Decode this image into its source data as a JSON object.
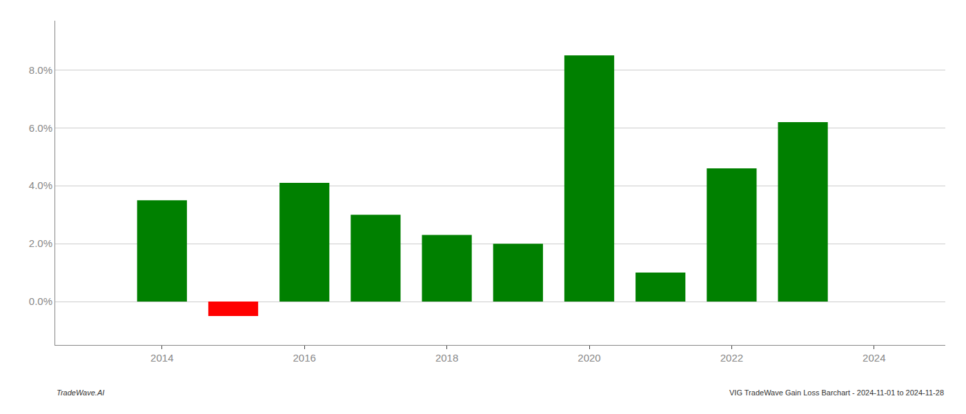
{
  "chart_data": {
    "type": "bar",
    "x": [
      2014,
      2015,
      2016,
      2017,
      2018,
      2019,
      2020,
      2021,
      2022,
      2023
    ],
    "values": [
      0.035,
      -0.005,
      0.041,
      0.03,
      0.023,
      0.02,
      0.085,
      0.01,
      0.046,
      0.062
    ],
    "colors": [
      "#008000",
      "#ff0000",
      "#008000",
      "#008000",
      "#008000",
      "#008000",
      "#008000",
      "#008000",
      "#008000",
      "#008000"
    ],
    "xlim": [
      2012.5,
      2025.0
    ],
    "xticks": [
      2014,
      2016,
      2018,
      2020,
      2022,
      2024
    ],
    "ylim": [
      -0.015,
      0.097
    ],
    "yticks": [
      {
        "value": 0,
        "label": "0.0%"
      },
      {
        "value": 0.02,
        "label": "2.0%"
      },
      {
        "value": 0.04,
        "label": "4.0%"
      },
      {
        "value": 0.06,
        "label": "6.0%"
      },
      {
        "value": 0.08,
        "label": "8.0%"
      }
    ],
    "grid": true,
    "annotations": [
      "TradeWave.AI",
      "VIG TradeWave Gain Loss Barchart - 2024-11-01 to 2024-11-28"
    ]
  }
}
